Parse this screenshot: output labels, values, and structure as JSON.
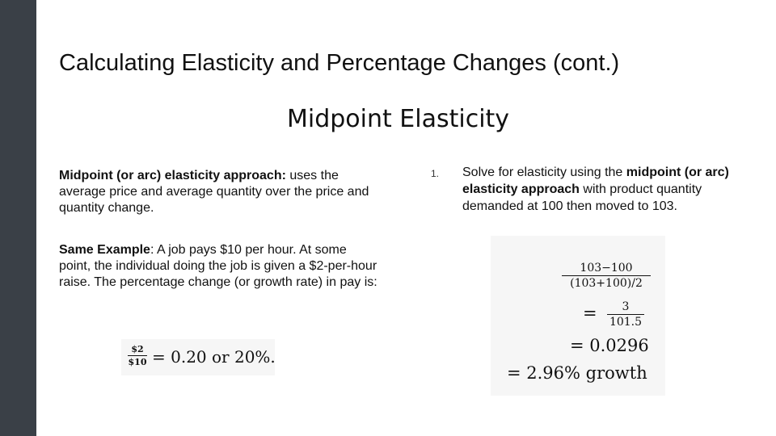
{
  "slide": {
    "title": "Calculating Elasticity and Percentage Changes (cont.)",
    "subtitle": "Midpoint Elasticity"
  },
  "left": {
    "p1_bold": "Midpoint (or arc) elasticity approach:",
    "p1_rest": " uses the average price and average quantity over the price and quantity change.",
    "p2_bold": "Same Example",
    "p2_rest": ": A job pays $10 per hour. At some point, the individual doing the job is given a $2-per-hour raise. The percentage change (or growth rate) in pay is:",
    "formula": {
      "numerator": "$2",
      "denominator": "$10",
      "result": "= 0.20 or 20%."
    }
  },
  "right": {
    "item_number": "1.",
    "text_before": "Solve for elasticity using the ",
    "text_bold": "midpoint (or arc) elasticity approach",
    "text_after": " with product quantity demanded at 100 then moved to 103.",
    "formula": {
      "frac1_num": "103−100",
      "frac1_den": "(103+100)/2",
      "frac2_num": "3",
      "frac2_den": "101.5",
      "eq_sign": "=",
      "line3": "= 0.0296",
      "line4": "= 2.96% growth"
    }
  }
}
